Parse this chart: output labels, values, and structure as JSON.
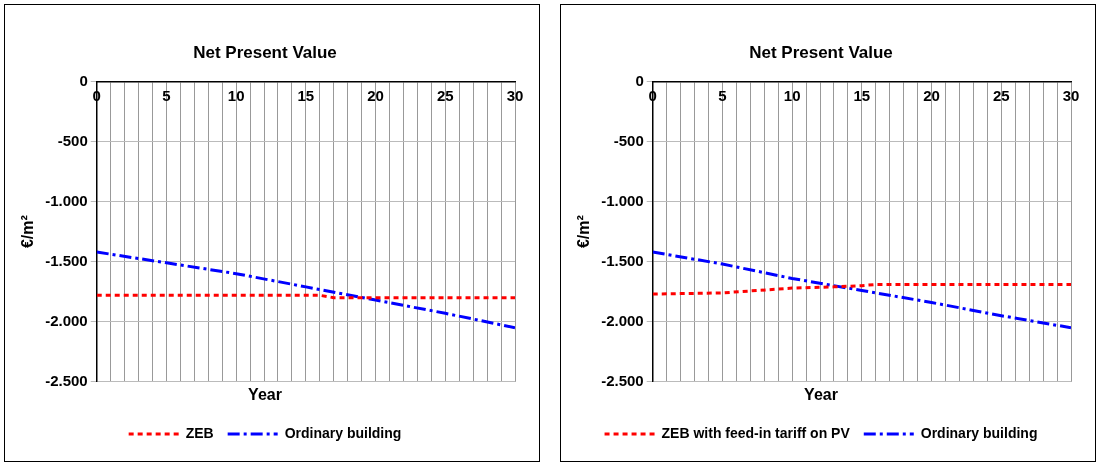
{
  "chart_data": [
    {
      "type": "line",
      "title": "Net Present Value",
      "xlabel": "Year",
      "ylabel": "€/m²",
      "xlim": [
        0,
        30
      ],
      "xticks": [
        0,
        5,
        10,
        15,
        20,
        25,
        30
      ],
      "ylim": [
        -2500,
        0
      ],
      "yticks": [
        {
          "value": -2500,
          "label": "-2.500"
        },
        {
          "value": -2000,
          "label": "-2.000"
        },
        {
          "value": -1500,
          "label": "-1.500"
        },
        {
          "value": -1000,
          "label": "-1.000"
        },
        {
          "value": -500,
          "label": "-500"
        },
        0
      ],
      "grid": true,
      "legend": "bottom",
      "marker": "none",
      "series": [
        {
          "name": "ZEB",
          "color": "#ff0000",
          "line_style": "dotted",
          "x": [
            0,
            5,
            10,
            16,
            17,
            20,
            25,
            30
          ],
          "values": [
            -1780,
            -1780,
            -1780,
            -1780,
            -1800,
            -1800,
            -1800,
            -1800
          ]
        },
        {
          "name": "Ordinary building",
          "color": "#0000ff",
          "line_style": "dashed",
          "x": [
            0,
            5,
            10,
            15,
            20,
            25,
            30
          ],
          "values": [
            -1420,
            -1510,
            -1600,
            -1710,
            -1820,
            -1930,
            -2050
          ]
        }
      ]
    },
    {
      "type": "line",
      "title": "Net Present Value",
      "xlabel": "Year",
      "ylabel": "€/m²",
      "xlim": [
        0,
        30
      ],
      "xticks": [
        0,
        5,
        10,
        15,
        20,
        25,
        30
      ],
      "ylim": [
        -2500,
        0
      ],
      "yticks": [
        {
          "value": -2500,
          "label": "-2.500"
        },
        {
          "value": -2000,
          "label": "-2.000"
        },
        {
          "value": -1500,
          "label": "-1.500"
        },
        {
          "value": -1000,
          "label": "-1.000"
        },
        {
          "value": -500,
          "label": "-500"
        },
        0
      ],
      "grid": true,
      "legend": "bottom",
      "marker": "none",
      "series": [
        {
          "name": "ZEB with feed-in tariff on PV",
          "color": "#ff0000",
          "line_style": "dotted",
          "x": [
            0,
            5,
            10,
            13,
            15,
            16,
            20,
            25,
            30
          ],
          "values": [
            -1770,
            -1760,
            -1720,
            -1710,
            -1700,
            -1690,
            -1690,
            -1690,
            -1690
          ]
        },
        {
          "name": "Ordinary building",
          "color": "#0000ff",
          "line_style": "dashed",
          "x": [
            0,
            5,
            10,
            15,
            20,
            25,
            30
          ],
          "values": [
            -1420,
            -1520,
            -1640,
            -1740,
            -1840,
            -1950,
            -2050
          ]
        }
      ]
    }
  ]
}
